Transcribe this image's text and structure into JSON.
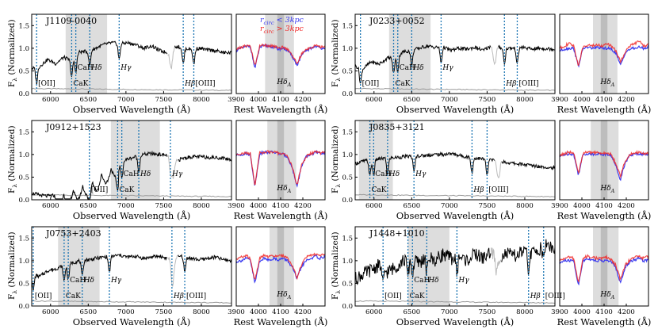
{
  "figure": {
    "ylabel": "F_λ (Normalized)",
    "ylabel_main": "F",
    "ylabel_sub": "λ",
    "ylabel_rest": " (Normalized)",
    "xlabel_observed": "Observed Wavelength (Å)",
    "xlabel_rest": "Rest Wavelength (Å)",
    "legend": [
      {
        "text": "r_circ < 3kpc",
        "main": "r",
        "sub": "circ",
        "rest": " < 3kpc",
        "color": "#3b3bf0"
      },
      {
        "text": "r_circ > 3kpc",
        "main": "r",
        "sub": "circ",
        "rest": " > 3kpc",
        "color": "#f02828"
      }
    ],
    "hdelta_label": {
      "main": "Hδ",
      "sub": "A"
    },
    "colors": {
      "spectrum": "#000000",
      "masked": "#bbbbbb",
      "error": "#999999",
      "lines": "#1f77b4",
      "band": "#dddddd",
      "band_dark": "#bdbdbd"
    }
  },
  "chart_data": [
    {
      "type": "line",
      "name": "J1109-0040",
      "ylim": [
        0,
        1.75
      ],
      "yticks": [
        0.0,
        0.5,
        1.0,
        1.5
      ],
      "yticklabels": [
        "0.0",
        "0.5",
        "1.0",
        "1.5"
      ],
      "observed": {
        "xlim": [
          5750,
          8400
        ],
        "xticks": [
          6000,
          6500,
          7000,
          7500,
          8000
        ],
        "shade": [
          6200,
          6750
        ],
        "masked": [
          [
            7550,
            7650
          ]
        ],
        "lines": [
          {
            "label": "[OII]",
            "x": 5815,
            "label_pos": "low"
          },
          {
            "label": "CaK",
            "x": 6280,
            "label_pos": "low"
          },
          {
            "label": "CaH",
            "x": 6335,
            "label_pos": "mid"
          },
          {
            "label": "Hδ",
            "x": 6520,
            "label_pos": "mid"
          },
          {
            "label": "Hγ",
            "x": 6910,
            "label_pos": "mid"
          },
          {
            "label": "Hβ",
            "x": 7760,
            "label_pos": "low"
          },
          {
            "label": "[OIII]",
            "x": 7900,
            "label_pos": "low"
          }
        ],
        "series_y": [
          0.55,
          0.6,
          0.75,
          0.66,
          0.8,
          0.72,
          0.92,
          0.93,
          1.0,
          1.08,
          1.12,
          1.1,
          1.12,
          1.08,
          1.0,
          1.05,
          0.95,
          0.9,
          1.05,
          1.0,
          0.98,
          1.0,
          0.96,
          0.95,
          0.9,
          0.9
        ]
      },
      "rest": {
        "xlim": [
          3900,
          4300
        ],
        "xticks": [
          3900,
          4000,
          4100,
          4200
        ],
        "shade_outer": [
          4030,
          4160
        ],
        "shade_inner": [
          4085,
          4115
        ],
        "inner_series_y": [
          0.95,
          1.0,
          1.03,
          1.05,
          0.55,
          1.02,
          1.05,
          1.05,
          1.02,
          0.98,
          1.0,
          0.95,
          0.82,
          0.62,
          0.85,
          0.95,
          1.0,
          1.05,
          1.0,
          1.02
        ],
        "outer_series_y": [
          0.97,
          1.02,
          1.05,
          1.06,
          0.6,
          1.05,
          1.07,
          1.06,
          1.05,
          1.0,
          1.02,
          0.98,
          0.85,
          0.66,
          0.87,
          0.97,
          1.02,
          1.06,
          1.02,
          1.05
        ]
      }
    },
    {
      "type": "line",
      "name": "J0233+0052",
      "ylim": [
        0,
        1.75
      ],
      "yticks": [
        0.0,
        0.5,
        1.0,
        1.5
      ],
      "yticklabels": [
        "0.0",
        "0.5",
        "1.0",
        "1.5"
      ],
      "observed": {
        "xlim": [
          5750,
          8400
        ],
        "xticks": [
          6000,
          6500,
          7000,
          7500,
          8000
        ],
        "shade": [
          6200,
          6750
        ],
        "masked": [
          [
            7550,
            7650
          ]
        ],
        "lines": [
          {
            "label": "[OII]",
            "x": 5820,
            "label_pos": "low"
          },
          {
            "label": "CaK",
            "x": 6260,
            "label_pos": "low"
          },
          {
            "label": "CaH",
            "x": 6315,
            "label_pos": "mid"
          },
          {
            "label": "Hδ",
            "x": 6500,
            "label_pos": "mid"
          },
          {
            "label": "Hγ",
            "x": 6890,
            "label_pos": "mid"
          },
          {
            "label": "Hβ",
            "x": 7730,
            "label_pos": "low"
          },
          {
            "label": "[OIII]",
            "x": 7900,
            "label_pos": "low"
          }
        ],
        "series_y": [
          0.6,
          0.55,
          0.7,
          0.65,
          0.78,
          0.8,
          0.92,
          0.95,
          1.0,
          1.05,
          1.02,
          1.03,
          0.95,
          1.0,
          0.98,
          1.02,
          0.95,
          1.05,
          1.02,
          1.0,
          1.0,
          1.02,
          0.98,
          1.0,
          0.99,
          0.98
        ]
      },
      "rest": {
        "xlim": [
          3900,
          4300
        ],
        "xticks": [
          3900,
          4000,
          4100,
          4200
        ],
        "shade_outer": [
          4050,
          4160
        ],
        "shade_inner": [
          4085,
          4115
        ],
        "inner_series_y": [
          0.95,
          0.98,
          1.0,
          1.0,
          0.6,
          1.0,
          1.02,
          1.0,
          1.02,
          1.0,
          1.0,
          0.98,
          0.9,
          0.62,
          0.9,
          0.98,
          1.0,
          1.02,
          1.0,
          1.02
        ],
        "outer_series_y": [
          1.0,
          1.05,
          1.1,
          1.05,
          0.62,
          1.02,
          1.08,
          1.05,
          1.08,
          1.05,
          1.1,
          1.05,
          0.95,
          0.7,
          0.92,
          1.05,
          1.1,
          1.15,
          1.05,
          1.08
        ]
      }
    },
    {
      "type": "line",
      "name": "J0912+1523",
      "ylim": [
        0,
        1.75
      ],
      "yticks": [
        0.0,
        0.5,
        1.0,
        1.5
      ],
      "yticklabels": [
        "0.0",
        "0.5",
        "1.0",
        "1.5"
      ],
      "observed": {
        "xlim": [
          5750,
          8400
        ],
        "xticks": [
          6000,
          6500,
          7000,
          7500,
          8000
        ],
        "shade": [
          6800,
          7450
        ],
        "masked": [
          [
            7550,
            7700
          ]
        ],
        "lines": [
          {
            "label": "[OII]",
            "x": 6515,
            "label_pos": "low"
          },
          {
            "label": "CaK",
            "x": 6890,
            "label_pos": "low"
          },
          {
            "label": "CaH",
            "x": 6945,
            "label_pos": "mid"
          },
          {
            "label": "Hδ",
            "x": 7170,
            "label_pos": "mid"
          },
          {
            "label": "Hγ",
            "x": 7590,
            "label_pos": "mid"
          }
        ],
        "series_y": [
          0.15,
          0.1,
          0.08,
          0.1,
          0.12,
          0.2,
          0.28,
          0.35,
          0.45,
          0.6,
          0.7,
          0.8,
          0.9,
          0.95,
          1.0,
          1.02,
          1.0,
          0.98,
          0.85,
          0.92,
          0.95,
          0.95,
          0.94,
          0.93,
          0.92,
          0.88
        ]
      },
      "rest": {
        "xlim": [
          3900,
          4300
        ],
        "xticks": [
          3900,
          4000,
          4100,
          4200
        ],
        "shade_outer": [
          4040,
          4170
        ],
        "shade_inner": [
          4085,
          4115
        ],
        "inner_series_y": [
          0.98,
          1.0,
          1.02,
          1.0,
          0.3,
          1.02,
          1.05,
          1.05,
          1.05,
          1.02,
          1.0,
          0.95,
          0.7,
          0.3,
          0.75,
          0.95,
          1.0,
          1.05,
          1.02,
          1.05
        ],
        "outer_series_y": [
          1.0,
          1.02,
          1.03,
          1.02,
          0.32,
          1.03,
          1.05,
          1.06,
          1.05,
          1.03,
          1.02,
          0.96,
          0.72,
          0.32,
          0.77,
          0.96,
          1.02,
          1.06,
          1.03,
          1.05
        ]
      }
    },
    {
      "type": "line",
      "name": "J0835+3121",
      "ylim": [
        0,
        1.75
      ],
      "yticks": [
        0.0,
        0.5,
        1.0,
        1.5
      ],
      "yticklabels": [
        "0.0",
        "0.5",
        "1.0",
        "1.5"
      ],
      "observed": {
        "xlim": [
          5750,
          8400
        ],
        "xticks": [
          6000,
          6500,
          7000,
          7500,
          8000
        ],
        "shade": [
          5800,
          6250
        ],
        "masked": [
          [
            7600,
            7700
          ]
        ],
        "lines": [
          {
            "label": "CaK",
            "x": 5945,
            "label_pos": "low"
          },
          {
            "label": "CaH",
            "x": 5995,
            "label_pos": "mid"
          },
          {
            "label": "Hδ",
            "x": 6180,
            "label_pos": "mid"
          },
          {
            "label": "Hγ",
            "x": 6530,
            "label_pos": "mid"
          },
          {
            "label": "Hβ",
            "x": 7300,
            "label_pos": "low"
          },
          {
            "label": "[OIII]",
            "x": 7500,
            "label_pos": "low"
          }
        ],
        "series_y": [
          0.8,
          0.85,
          0.88,
          0.9,
          0.92,
          0.93,
          0.95,
          0.96,
          0.97,
          0.98,
          1.0,
          1.0,
          1.02,
          0.98,
          0.95,
          0.92,
          0.9,
          0.88,
          0.86,
          0.82,
          0.8,
          0.78,
          0.76,
          0.74,
          0.72,
          0.7
        ]
      },
      "rest": {
        "xlim": [
          3900,
          4300
        ],
        "xticks": [
          3900,
          4000,
          4100,
          4200
        ],
        "shade_outer": [
          4040,
          4165
        ],
        "shade_inner": [
          4085,
          4115
        ],
        "inner_series_y": [
          0.95,
          1.0,
          1.02,
          1.0,
          0.55,
          1.0,
          1.02,
          1.0,
          1.02,
          1.0,
          1.0,
          0.98,
          0.75,
          0.45,
          0.82,
          0.98,
          1.0,
          1.02,
          1.0,
          1.0
        ],
        "outer_series_y": [
          0.98,
          1.02,
          1.05,
          1.02,
          0.58,
          1.02,
          1.05,
          1.03,
          1.05,
          1.02,
          1.03,
          1.0,
          0.8,
          0.52,
          0.86,
          1.0,
          1.03,
          1.05,
          1.02,
          1.03
        ]
      }
    },
    {
      "type": "line",
      "name": "J0753+2403",
      "ylim": [
        0,
        1.75
      ],
      "yticks": [
        0.0,
        0.5,
        1.0,
        1.5
      ],
      "yticklabels": [
        "0.0",
        "0.5",
        "1.0",
        "1.5"
      ],
      "observed": {
        "xlim": [
          5750,
          8400
        ],
        "xticks": [
          6000,
          6500,
          7000,
          7500,
          8000
        ],
        "shade": [
          6100,
          6650
        ],
        "masked": [
          [
            7550,
            7700
          ]
        ],
        "lines": [
          {
            "label": "[OII]",
            "x": 5770,
            "label_pos": "low"
          },
          {
            "label": "CaK",
            "x": 6180,
            "label_pos": "low"
          },
          {
            "label": "CaH",
            "x": 6235,
            "label_pos": "mid"
          },
          {
            "label": "Hδ",
            "x": 6420,
            "label_pos": "mid"
          },
          {
            "label": "Hγ",
            "x": 6780,
            "label_pos": "mid"
          },
          {
            "label": "Hβ",
            "x": 7610,
            "label_pos": "low"
          },
          {
            "label": "[OIII]",
            "x": 7780,
            "label_pos": "low"
          }
        ],
        "series_y": [
          0.7,
          0.65,
          0.78,
          0.82,
          0.9,
          0.95,
          1.0,
          1.02,
          1.05,
          1.08,
          1.1,
          1.12,
          1.08,
          1.1,
          1.05,
          1.08,
          1.1,
          1.05,
          1.08,
          1.1,
          1.05,
          1.02,
          1.05,
          1.08,
          1.02,
          1.0
        ]
      },
      "rest": {
        "xlim": [
          3900,
          4300
        ],
        "xticks": [
          3900,
          4000,
          4100,
          4200
        ],
        "shade_outer": [
          4050,
          4160
        ],
        "shade_inner": [
          4085,
          4115
        ],
        "inner_series_y": [
          0.98,
          1.0,
          1.05,
          1.02,
          0.5,
          1.0,
          1.05,
          1.02,
          1.05,
          1.02,
          1.05,
          1.0,
          0.85,
          0.6,
          0.88,
          1.0,
          1.05,
          1.1,
          1.05,
          1.1
        ],
        "outer_series_y": [
          1.02,
          1.08,
          1.12,
          1.05,
          0.55,
          1.05,
          1.12,
          1.08,
          1.12,
          1.1,
          1.12,
          1.05,
          0.9,
          0.62,
          0.92,
          1.08,
          1.12,
          1.15,
          1.1,
          1.15
        ]
      }
    },
    {
      "type": "line",
      "name": "J1448+1010",
      "ylim": [
        0,
        1.75
      ],
      "yticks": [
        0.0,
        0.5,
        1.0,
        1.5
      ],
      "yticklabels": [
        "0.0",
        "0.5",
        "1.0",
        "1.5"
      ],
      "observed": {
        "xlim": [
          5750,
          8400
        ],
        "xticks": [
          6000,
          6500,
          7000,
          7500,
          8000
        ],
        "shade": [
          6450,
          7000
        ],
        "masked": [
          [
            7550,
            7700
          ]
        ],
        "lines": [
          {
            "label": "[OII]",
            "x": 6120,
            "label_pos": "low"
          },
          {
            "label": "CaK",
            "x": 6450,
            "label_pos": "low"
          },
          {
            "label": "CaH",
            "x": 6510,
            "label_pos": "mid"
          },
          {
            "label": "Hδ",
            "x": 6700,
            "label_pos": "mid"
          },
          {
            "label": "Hγ",
            "x": 7100,
            "label_pos": "mid"
          },
          {
            "label": "Hβ",
            "x": 8050,
            "label_pos": "low"
          },
          {
            "label": "[OIII]",
            "x": 8250,
            "label_pos": "low"
          }
        ],
        "series_y": [
          0.6,
          0.7,
          0.8,
          0.9,
          0.75,
          0.85,
          1.0,
          1.05,
          0.95,
          1.1,
          1.0,
          1.15,
          1.05,
          1.1,
          1.0,
          1.15,
          1.05,
          1.2,
          1.1,
          1.15,
          1.1,
          1.2,
          1.15,
          1.25,
          1.4,
          1.2
        ]
      },
      "rest": {
        "xlim": [
          3900,
          4300
        ],
        "xticks": [
          3900,
          4000,
          4100,
          4200
        ],
        "shade_outer": [
          4050,
          4165
        ],
        "shade_inner": [
          4085,
          4115
        ],
        "inner_series_y": [
          0.95,
          1.0,
          1.0,
          1.0,
          0.45,
          1.0,
          1.05,
          1.02,
          1.0,
          1.0,
          1.0,
          0.98,
          0.85,
          0.5,
          0.85,
          0.98,
          1.02,
          1.05,
          1.0,
          1.02
        ],
        "outer_series_y": [
          1.0,
          1.05,
          1.08,
          1.05,
          0.5,
          1.05,
          1.1,
          1.08,
          1.05,
          1.05,
          1.08,
          1.02,
          0.9,
          0.58,
          0.9,
          1.02,
          1.08,
          1.1,
          1.05,
          1.1
        ]
      }
    }
  ]
}
